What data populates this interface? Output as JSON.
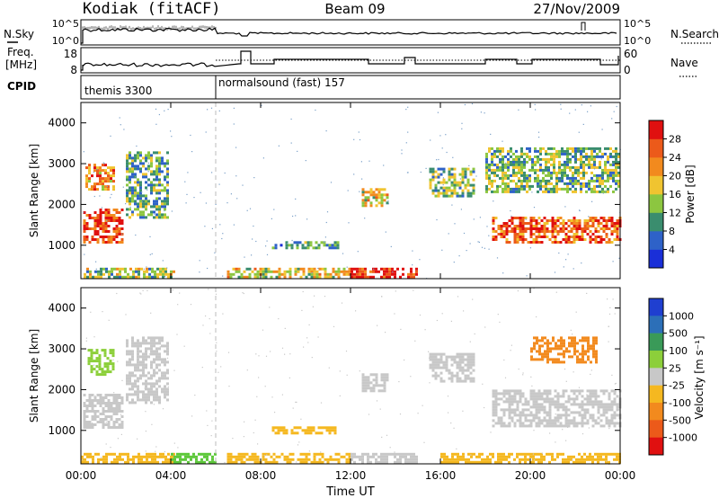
{
  "header": {
    "site": "Kodiak (fitACF)",
    "beam": "Beam 09",
    "date": "27/Nov/2009"
  },
  "top_strip": {
    "nsky_label": "N.Sky",
    "nsky_ticks": [
      "10^5",
      "10^0"
    ],
    "nsearch_label": "N.Search",
    "nsearch_ticks": [
      "10^5",
      "10^0"
    ]
  },
  "freq_strip": {
    "freq_label_1": "Freq.",
    "freq_label_2": "[MHz]",
    "freq_ticks": [
      "18",
      "8"
    ],
    "nave_label": "Nave",
    "nave_ticks": [
      "60",
      "0"
    ]
  },
  "cpid_strip": {
    "label": "CPID",
    "segments": [
      {
        "name": "themis 3300",
        "start_hour": 0
      },
      {
        "name": "normalsound (fast) 157",
        "start_hour": 6
      }
    ]
  },
  "chart_data": [
    {
      "type": "heatmap",
      "title": "",
      "xlabel": "",
      "ylabel": "Slant Range [km]",
      "ylim": [
        180,
        4500
      ],
      "y_ticks": [
        "1000",
        "2000",
        "3000",
        "4000"
      ],
      "x_ticks": [],
      "colorbar_label": "Power [dB]",
      "colorbar_ticks": [
        "4",
        "8",
        "12",
        "16",
        "20",
        "24",
        "28"
      ],
      "colorbar_colors": [
        "#1a2fd8",
        "#2e62c8",
        "#3a8d6e",
        "#8cc640",
        "#f0c430",
        "#f28a1e",
        "#ec5a1a",
        "#e01010"
      ],
      "features": [
        {
          "t0": 0.0,
          "t1": 4.2,
          "r0": 250,
          "r1": 450,
          "level": 0.45
        },
        {
          "t0": 0.1,
          "t1": 1.8,
          "r0": 1100,
          "r1": 1900,
          "level": 0.85
        },
        {
          "t0": 0.2,
          "t1": 1.5,
          "r0": 2400,
          "r1": 3000,
          "level": 0.7
        },
        {
          "t0": 2.0,
          "t1": 3.9,
          "r0": 1700,
          "r1": 3300,
          "level": 0.35
        },
        {
          "t0": 6.5,
          "t1": 12.0,
          "r0": 200,
          "r1": 450,
          "level": 0.55
        },
        {
          "t0": 12.0,
          "t1": 15.0,
          "r0": 250,
          "r1": 450,
          "level": 0.9
        },
        {
          "t0": 12.5,
          "t1": 13.6,
          "r0": 2000,
          "r1": 2400,
          "level": 0.55
        },
        {
          "t0": 15.5,
          "t1": 17.5,
          "r0": 2200,
          "r1": 2900,
          "level": 0.4
        },
        {
          "t0": 8.5,
          "t1": 11.5,
          "r0": 950,
          "r1": 1100,
          "level": 0.3
        },
        {
          "t0": 18.3,
          "t1": 24.0,
          "r0": 1100,
          "r1": 1700,
          "level": 0.8
        },
        {
          "t0": 18.0,
          "t1": 24.0,
          "r0": 2300,
          "r1": 3400,
          "level": 0.4
        }
      ]
    },
    {
      "type": "heatmap",
      "title": "",
      "xlabel": "Time UT",
      "ylabel": "Slant Range [km]",
      "ylim": [
        180,
        4500
      ],
      "y_ticks": [
        "1000",
        "2000",
        "3000",
        "4000"
      ],
      "x_ticks": [
        "00:00",
        "04:00",
        "08:00",
        "12:00",
        "16:00",
        "20:00",
        "00:00"
      ],
      "colorbar_label": "Velocity [m s⁻¹]",
      "colorbar_ticks": [
        "1000",
        "500",
        "100",
        "25",
        "-25",
        "-100",
        "-500",
        "-1000"
      ],
      "colorbar_colors": [
        "#1f3fd0",
        "#2c6fb8",
        "#3a9a58",
        "#8ccf3a",
        "#c8c8c8",
        "#f5b820",
        "#f28a1e",
        "#ec5a1a",
        "#e01010"
      ],
      "features": [
        {
          "t0": 0.0,
          "t1": 4.2,
          "r0": 200,
          "r1": 450,
          "level": "#f5b820"
        },
        {
          "t0": 0.1,
          "t1": 1.8,
          "r0": 1100,
          "r1": 1900,
          "level": "#c8c8c8"
        },
        {
          "t0": 0.3,
          "t1": 1.4,
          "r0": 2400,
          "r1": 3000,
          "level": "#8ccf3a"
        },
        {
          "t0": 2.0,
          "t1": 3.9,
          "r0": 1700,
          "r1": 3300,
          "level": "#c8c8c8"
        },
        {
          "t0": 4.0,
          "t1": 6.0,
          "r0": 250,
          "r1": 450,
          "level": "#5dc83a"
        },
        {
          "t0": 6.5,
          "t1": 12.0,
          "r0": 200,
          "r1": 450,
          "level": "#f5b820"
        },
        {
          "t0": 12.0,
          "t1": 15.0,
          "r0": 250,
          "r1": 450,
          "level": "#c8c8c8"
        },
        {
          "t0": 12.5,
          "t1": 13.6,
          "r0": 2000,
          "r1": 2400,
          "level": "#c8c8c8"
        },
        {
          "t0": 15.5,
          "t1": 17.5,
          "r0": 2200,
          "r1": 2900,
          "level": "#c8c8c8"
        },
        {
          "t0": 8.5,
          "t1": 11.5,
          "r0": 950,
          "r1": 1100,
          "level": "#f5b820"
        },
        {
          "t0": 18.3,
          "t1": 24.0,
          "r0": 1100,
          "r1": 2000,
          "level": "#c8c8c8"
        },
        {
          "t0": 20.0,
          "t1": 23.0,
          "r0": 2700,
          "r1": 3300,
          "level": "#f28a1e"
        },
        {
          "t0": 16.0,
          "t1": 24.0,
          "r0": 200,
          "r1": 450,
          "level": "#f5b820"
        }
      ]
    }
  ]
}
